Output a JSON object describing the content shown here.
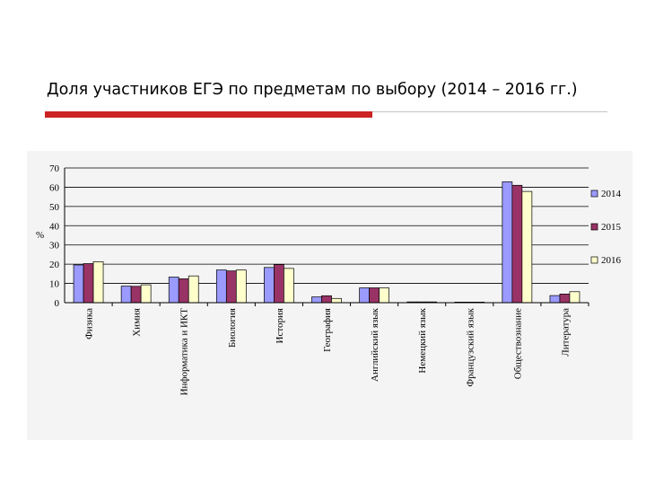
{
  "slide": {
    "title": "Доля участников ЕГЭ по предметам по выбору (2014 – 2016 гг.)"
  },
  "colors": {
    "accent_rule": "#cc2222",
    "series": [
      "#9a9aff",
      "#993366",
      "#ffffcc"
    ],
    "panel_bg": "#f4f4f4"
  },
  "chart_data": {
    "type": "bar",
    "title": "",
    "xlabel": "",
    "ylabel": "%",
    "ylim": [
      0,
      70
    ],
    "yticks": [
      0,
      10,
      20,
      30,
      40,
      50,
      60,
      70
    ],
    "grid": true,
    "legend_position": "right",
    "categories": [
      "Физика",
      "Химия",
      "Информатика и ИКТ",
      "Биология",
      "История",
      "География",
      "Английский язык",
      "Немецкий язык",
      "Французский язык",
      "Обществознание",
      "Литература"
    ],
    "series": [
      {
        "name": "2014",
        "values": [
          19.6,
          8.6,
          13.3,
          17.0,
          18.3,
          3.0,
          7.7,
          0.4,
          0.3,
          62.8,
          3.7
        ]
      },
      {
        "name": "2015",
        "values": [
          20.3,
          8.5,
          12.4,
          16.5,
          19.8,
          3.6,
          7.7,
          0.4,
          0.3,
          61.0,
          4.5
        ]
      },
      {
        "name": "2016",
        "values": [
          21.3,
          9.3,
          13.9,
          17.0,
          17.8,
          2.2,
          7.7,
          0.4,
          0.3,
          57.8,
          5.7
        ]
      }
    ]
  }
}
